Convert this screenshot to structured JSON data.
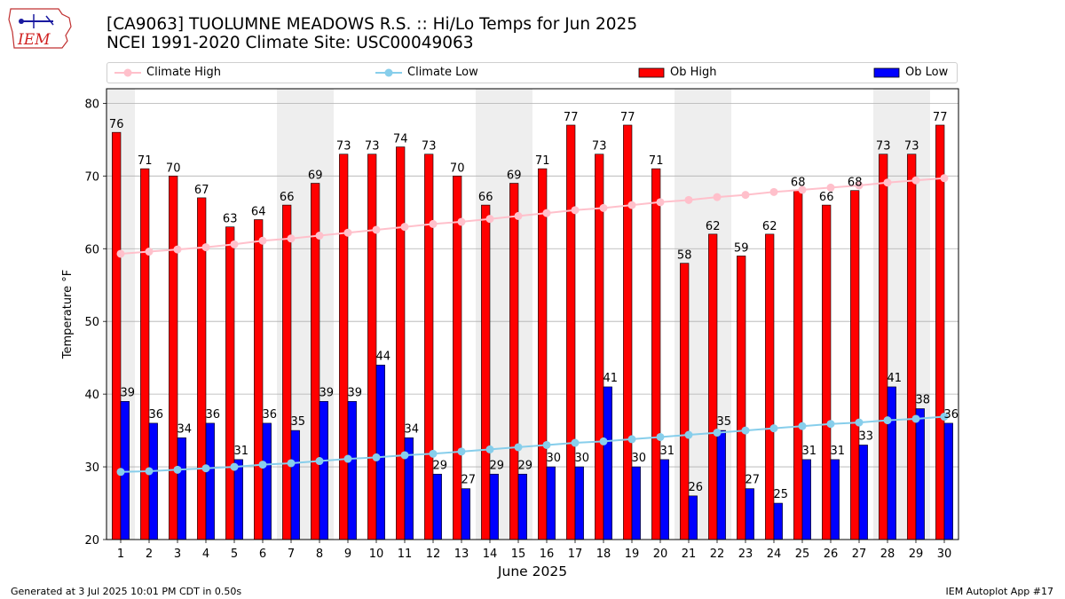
{
  "title_line1": "[CA9063] TUOLUMNE MEADOWS R.S. :: Hi/Lo Temps for Jun 2025",
  "title_line2": "NCEI 1991-2020 Climate Site: USC00049063",
  "footer_left": "Generated at 3 Jul 2025 10:01 PM CDT in 0.50s",
  "footer_right": "IEM Autoplot App #17",
  "logo_text": "IEM",
  "legend": {
    "climate_high": "Climate High",
    "climate_low": "Climate Low",
    "ob_high": "Ob High",
    "ob_low": "Ob Low"
  },
  "colors": {
    "ob_high": "#ff0000",
    "ob_low": "#0000ff",
    "climate_high": "#ffc0cb",
    "climate_low": "#87ceeb",
    "weekend_shade": "#eeeeee"
  },
  "chart_data": {
    "type": "bar",
    "xlabel": "June 2025",
    "ylabel": "Temperature °F",
    "ylim": [
      20,
      82
    ],
    "yticks": [
      20,
      30,
      40,
      50,
      60,
      70,
      80
    ],
    "grid": "horizontal",
    "legend_position": "top",
    "categories": [
      "1",
      "2",
      "3",
      "4",
      "5",
      "6",
      "7",
      "8",
      "9",
      "10",
      "11",
      "12",
      "13",
      "14",
      "15",
      "16",
      "17",
      "18",
      "19",
      "20",
      "21",
      "22",
      "23",
      "24",
      "25",
      "26",
      "27",
      "28",
      "29",
      "30"
    ],
    "shaded_days": [
      1,
      7,
      8,
      14,
      15,
      21,
      22,
      28,
      29
    ],
    "series": [
      {
        "name": "Ob High",
        "kind": "bar",
        "values": [
          76,
          71,
          70,
          67,
          63,
          64,
          66,
          69,
          73,
          73,
          74,
          73,
          70,
          66,
          69,
          71,
          77,
          73,
          77,
          71,
          58,
          62,
          59,
          62,
          68,
          66,
          68,
          73,
          73,
          77
        ]
      },
      {
        "name": "Ob Low",
        "kind": "bar",
        "values": [
          39,
          36,
          34,
          36,
          31,
          36,
          35,
          39,
          39,
          44,
          34,
          29,
          27,
          29,
          29,
          30,
          30,
          41,
          30,
          31,
          26,
          35,
          27,
          25,
          31,
          31,
          33,
          41,
          38,
          36
        ]
      },
      {
        "name": "Climate High",
        "kind": "line",
        "values": [
          59.3,
          59.6,
          59.9,
          60.2,
          60.6,
          61.1,
          61.4,
          61.8,
          62.2,
          62.6,
          63.0,
          63.4,
          63.7,
          64.1,
          64.5,
          64.9,
          65.3,
          65.6,
          66.0,
          66.4,
          66.7,
          67.1,
          67.4,
          67.8,
          68.1,
          68.4,
          68.7,
          69.1,
          69.4,
          69.7
        ]
      },
      {
        "name": "Climate Low",
        "kind": "line",
        "values": [
          29.3,
          29.4,
          29.6,
          29.8,
          30.0,
          30.3,
          30.5,
          30.8,
          31.1,
          31.3,
          31.6,
          31.8,
          32.1,
          32.4,
          32.7,
          33.0,
          33.3,
          33.5,
          33.8,
          34.1,
          34.4,
          34.7,
          35.0,
          35.3,
          35.6,
          35.9,
          36.1,
          36.4,
          36.6,
          36.9
        ]
      }
    ]
  }
}
